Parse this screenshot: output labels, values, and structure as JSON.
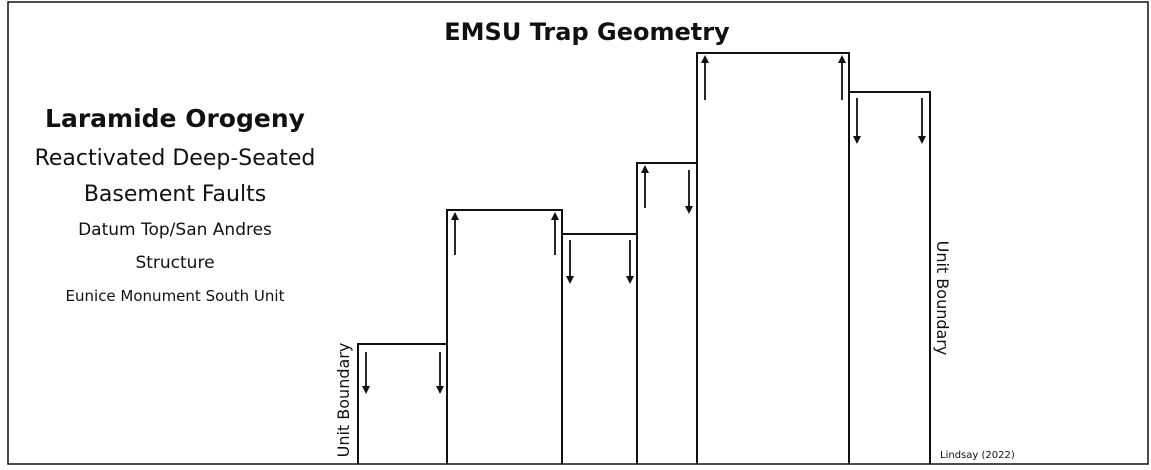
{
  "title": "EMSU Trap Geometry",
  "side_text": {
    "heading": "Laramide Orogeny",
    "lines": [
      "Reactivated Deep-Seated",
      "Basement Faults",
      "Datum Top/San Andres",
      "Structure",
      "Eunice Monument South Unit"
    ]
  },
  "boundary_labels": [
    "Unit Boundary",
    "Unit Boundary"
  ],
  "credit": "Lindsay (2022)"
}
